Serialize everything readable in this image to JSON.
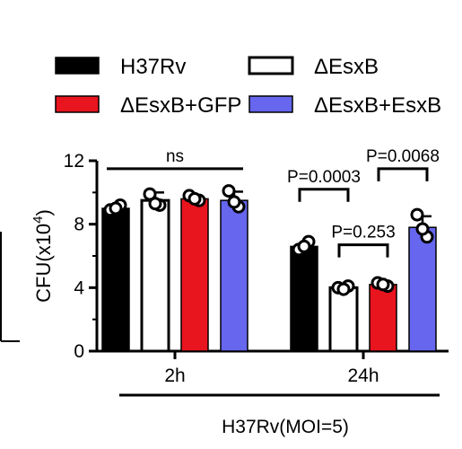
{
  "chart_data": {
    "type": "bar",
    "categories": [
      "2h",
      "24h"
    ],
    "series": [
      {
        "name": "H37Rv",
        "color": "#000000",
        "fill": "solid",
        "values": [
          9.0,
          6.6
        ],
        "error": [
          0.25,
          0.25
        ],
        "points": [
          [
            8.9,
            9.2,
            9.0
          ],
          [
            6.4,
            6.9,
            6.6
          ]
        ]
      },
      {
        "name": "ΔEsxB",
        "color": "#000000",
        "fill": "hollow",
        "values": [
          9.5,
          4.0
        ],
        "error": [
          0.5,
          0.12
        ],
        "points": [
          [
            9.9,
            9.2,
            9.3
          ],
          [
            4.0,
            4.1,
            3.9
          ]
        ]
      },
      {
        "name": "ΔEsxB+GFP",
        "color": "#e8141e",
        "fill": "solid",
        "values": [
          9.6,
          4.2
        ],
        "error": [
          0.15,
          0.12
        ],
        "points": [
          [
            9.8,
            9.5,
            9.6
          ],
          [
            4.3,
            4.1,
            4.2
          ]
        ]
      },
      {
        "name": "ΔEsxB+EsxB",
        "color": "#6666ee",
        "fill": "solid",
        "values": [
          9.5,
          7.8
        ],
        "error": [
          0.55,
          0.7
        ],
        "points": [
          [
            10.1,
            9.1,
            9.4
          ],
          [
            8.6,
            7.2,
            7.7
          ]
        ]
      }
    ],
    "ylabel": "CFU(x10",
    "ylabel_sup": "4",
    "ylabel_close": ")",
    "xlabel": "H37Rv(MOI=5)",
    "ylim": [
      0,
      12
    ],
    "yticks": [
      "0",
      "4",
      "8",
      "12"
    ],
    "legend_position": "top",
    "annotations": [
      {
        "text": "ns",
        "group": 0,
        "from_series": 0,
        "to_series": 3,
        "y": 11.5,
        "style": "line"
      },
      {
        "text": "P=0.0003",
        "italic_prefix": "P",
        "group": 1,
        "from_series": 0,
        "to_series": 1,
        "y": 10.2,
        "style": "bracket"
      },
      {
        "text": "P=0.0068",
        "italic_prefix": "P",
        "group": 1,
        "from_series": 2,
        "to_series": 3,
        "y": 11.5,
        "style": "bracket"
      },
      {
        "text": "P=0.253",
        "italic_prefix": "P",
        "group": 1,
        "from_series": 1,
        "to_series": 2,
        "y": 6.7,
        "style": "bracket"
      }
    ]
  }
}
